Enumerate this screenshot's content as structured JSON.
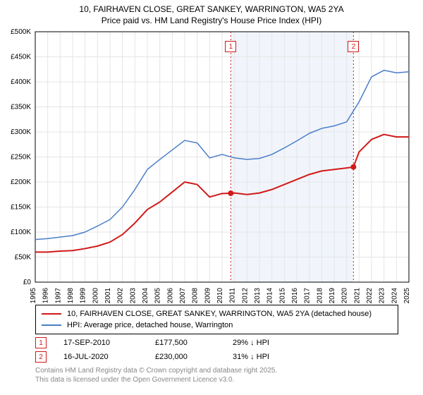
{
  "titles": {
    "line1": "10, FAIRHAVEN CLOSE, GREAT SANKEY, WARRINGTON, WA5 2YA",
    "line2": "Price paid vs. HM Land Registry's House Price Index (HPI)"
  },
  "chart": {
    "type": "line",
    "x_years": [
      1995,
      1996,
      1997,
      1998,
      1999,
      2000,
      2001,
      2002,
      2003,
      2004,
      2005,
      2006,
      2007,
      2008,
      2009,
      2010,
      2011,
      2012,
      2013,
      2014,
      2015,
      2016,
      2017,
      2018,
      2019,
      2020,
      2021,
      2022,
      2023,
      2024,
      2025
    ],
    "xlim": [
      1995,
      2025
    ],
    "ylim": [
      0,
      500000
    ],
    "ytick_step": 50000,
    "ytick_labels": [
      "£0",
      "£50K",
      "£100K",
      "£150K",
      "£200K",
      "£250K",
      "£300K",
      "£350K",
      "£400K",
      "£450K",
      "£500K"
    ],
    "axis_fontsize": 10,
    "background_color": "#ffffff",
    "grid_color": "#e5e5e5",
    "shaded_band": {
      "from": 2010.7,
      "to": 2020.55,
      "color": "#f1f5fb"
    },
    "series": [
      {
        "name": "price_paid",
        "label": "10, FAIRHAVEN CLOSE, GREAT SANKEY, WARRINGTON, WA5 2YA (detached house)",
        "color": "#d11919",
        "line_width": 2,
        "data": [
          [
            1995,
            60000
          ],
          [
            1996,
            60000
          ],
          [
            1997,
            62000
          ],
          [
            1998,
            63000
          ],
          [
            1999,
            67000
          ],
          [
            2000,
            72000
          ],
          [
            2001,
            80000
          ],
          [
            2002,
            95000
          ],
          [
            2003,
            118000
          ],
          [
            2004,
            145000
          ],
          [
            2005,
            160000
          ],
          [
            2006,
            180000
          ],
          [
            2007,
            200000
          ],
          [
            2008,
            195000
          ],
          [
            2009,
            170000
          ],
          [
            2010,
            177000
          ],
          [
            2010.7,
            177500
          ],
          [
            2011,
            178000
          ],
          [
            2012,
            175000
          ],
          [
            2013,
            178000
          ],
          [
            2014,
            185000
          ],
          [
            2015,
            195000
          ],
          [
            2016,
            205000
          ],
          [
            2017,
            215000
          ],
          [
            2018,
            222000
          ],
          [
            2019,
            225000
          ],
          [
            2020,
            228000
          ],
          [
            2020.55,
            230000
          ],
          [
            2021,
            260000
          ],
          [
            2022,
            285000
          ],
          [
            2023,
            295000
          ],
          [
            2024,
            290000
          ],
          [
            2025,
            290000
          ]
        ]
      },
      {
        "name": "hpi",
        "label": "HPI: Average price, detached house, Warrington",
        "color": "#4a7ec8",
        "line_width": 1.5,
        "data": [
          [
            1995,
            85000
          ],
          [
            1996,
            87000
          ],
          [
            1997,
            90000
          ],
          [
            1998,
            93000
          ],
          [
            1999,
            100000
          ],
          [
            2000,
            112000
          ],
          [
            2001,
            125000
          ],
          [
            2002,
            150000
          ],
          [
            2003,
            185000
          ],
          [
            2004,
            225000
          ],
          [
            2005,
            245000
          ],
          [
            2006,
            264000
          ],
          [
            2007,
            283000
          ],
          [
            2008,
            278000
          ],
          [
            2009,
            248000
          ],
          [
            2010,
            255000
          ],
          [
            2011,
            248000
          ],
          [
            2012,
            245000
          ],
          [
            2013,
            247000
          ],
          [
            2014,
            255000
          ],
          [
            2015,
            268000
          ],
          [
            2016,
            282000
          ],
          [
            2017,
            297000
          ],
          [
            2018,
            307000
          ],
          [
            2019,
            312000
          ],
          [
            2020,
            320000
          ],
          [
            2021,
            360000
          ],
          [
            2022,
            410000
          ],
          [
            2023,
            423000
          ],
          [
            2024,
            418000
          ],
          [
            2025,
            420000
          ]
        ]
      }
    ],
    "trade_markers": [
      {
        "num": "1",
        "x": 2010.7,
        "y": 177500,
        "color": "#d11919"
      },
      {
        "num": "2",
        "x": 2020.55,
        "y": 230000,
        "color": "#d11919"
      }
    ],
    "trade_label_top_y": 470000
  },
  "legend": {
    "items": [
      {
        "color": "#d11919",
        "text": "10, FAIRHAVEN CLOSE, GREAT SANKEY, WARRINGTON, WA5 2YA (detached house)"
      },
      {
        "color": "#4a7ec8",
        "text": "HPI: Average price, detached house, Warrington"
      }
    ]
  },
  "trades": [
    {
      "num": "1",
      "color": "#d11919",
      "date": "17-SEP-2010",
      "price": "£177,500",
      "pct": "29% ↓ HPI"
    },
    {
      "num": "2",
      "color": "#d11919",
      "date": "16-JUL-2020",
      "price": "£230,000",
      "pct": "31% ↓ HPI"
    }
  ],
  "footer": {
    "line1": "Contains HM Land Registry data © Crown copyright and database right 2025.",
    "line2": "This data is licensed under the Open Government Licence v3.0."
  }
}
